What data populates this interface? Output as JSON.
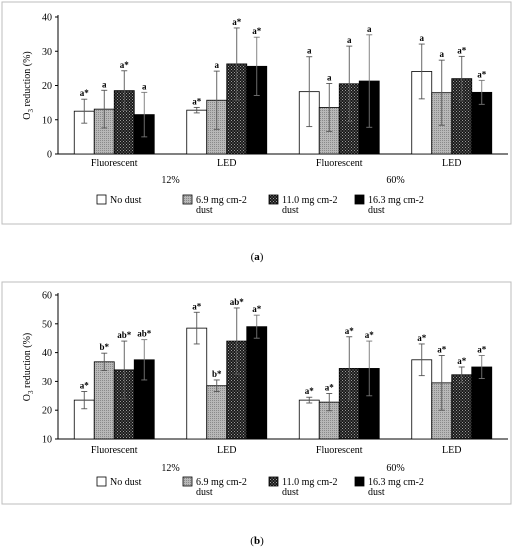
{
  "legend": [
    {
      "line1": "No dust",
      "line2": "",
      "pattern": "white"
    },
    {
      "line1": "6.9 mg cm-2",
      "line2": "dust",
      "pattern": "gray"
    },
    {
      "line1": "11.0 mg cm-2",
      "line2": "dust",
      "pattern": "dark"
    },
    {
      "line1": "16.3 mg cm-2",
      "line2": "dust",
      "pattern": "black"
    }
  ],
  "chart_data": [
    {
      "type": "bar",
      "panel_label": "(a)",
      "ylabel": "O3 reduction (%)",
      "ylim": [
        0,
        40
      ],
      "yticks": [
        0,
        10,
        20,
        30,
        40
      ],
      "categories": [
        "Fluorescent",
        "LED",
        "Fluorescent",
        "LED"
      ],
      "groups": [
        {
          "label": "12%",
          "span": [
            0,
            1
          ]
        },
        {
          "label": "60%",
          "span": [
            2,
            3
          ]
        }
      ],
      "series": [
        {
          "name": "No dust",
          "values": [
            12.5,
            12.8,
            18.2,
            24.1
          ],
          "errors": [
            3.5,
            0.8,
            10.2,
            8.0
          ],
          "labels": [
            "a*",
            "a*",
            "a",
            "a"
          ]
        },
        {
          "name": "6.9 mg cm-2 dust",
          "values": [
            13.1,
            15.7,
            13.6,
            17.9
          ],
          "errors": [
            5.5,
            8.5,
            7.0,
            9.5
          ],
          "labels": [
            "a",
            "a",
            "a",
            "a"
          ]
        },
        {
          "name": "11.0 mg cm-2 dust",
          "values": [
            18.5,
            26.3,
            20.5,
            22.0
          ],
          "errors": [
            5.8,
            10.5,
            11.0,
            6.5
          ],
          "labels": [
            "a*",
            "a*",
            "a",
            "a*"
          ]
        },
        {
          "name": "16.3 mg cm-2 dust",
          "values": [
            11.5,
            25.6,
            21.3,
            18.0
          ],
          "errors": [
            6.5,
            8.5,
            13.5,
            3.5
          ],
          "labels": [
            "a",
            "a*",
            "a",
            "a*"
          ]
        }
      ]
    },
    {
      "type": "bar",
      "panel_label": "(b)",
      "ylabel": "O3 reduction (%)",
      "ylim": [
        10,
        60
      ],
      "yticks": [
        10,
        20,
        30,
        40,
        50,
        60
      ],
      "categories": [
        "Fluorescent",
        "LED",
        "Fluorescent",
        "LED"
      ],
      "groups": [
        {
          "label": "12%",
          "span": [
            0,
            1
          ]
        },
        {
          "label": "60%",
          "span": [
            2,
            3
          ]
        }
      ],
      "series": [
        {
          "name": "No dust",
          "values": [
            23.5,
            48.5,
            23.5,
            37.5
          ],
          "errors": [
            3.0,
            5.5,
            1.0,
            5.5
          ],
          "labels": [
            "a*",
            "a*",
            "a*",
            "a*"
          ]
        },
        {
          "name": "6.9 mg cm-2 dust",
          "values": [
            36.8,
            28.5,
            22.8,
            29.5
          ],
          "errors": [
            3.0,
            2.0,
            3.0,
            9.5
          ],
          "labels": [
            "b*",
            "b*",
            "a*",
            "a*"
          ]
        },
        {
          "name": "11.0 mg cm-2 dust",
          "values": [
            34.0,
            44.0,
            34.5,
            32.3
          ],
          "errors": [
            10.0,
            11.5,
            11.0,
            2.7
          ],
          "labels": [
            "ab*",
            "ab*",
            "a*",
            "a*"
          ]
        },
        {
          "name": "16.3 mg cm-2 dust",
          "values": [
            37.5,
            49.0,
            34.5,
            35.0
          ],
          "errors": [
            7.0,
            4.0,
            9.5,
            4.0
          ],
          "labels": [
            "ab*",
            "a*",
            "a*",
            "a*"
          ]
        }
      ]
    }
  ]
}
